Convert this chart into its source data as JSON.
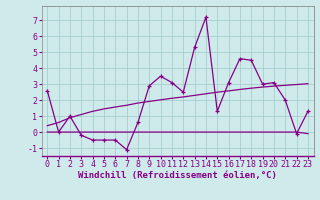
{
  "xlabel": "Windchill (Refroidissement éolien,°C)",
  "background_color": "#ceeaea",
  "grid_color": "#a0c8c8",
  "line_color": "#880088",
  "x_data": [
    0,
    1,
    2,
    3,
    4,
    5,
    6,
    7,
    8,
    9,
    10,
    11,
    12,
    13,
    14,
    15,
    16,
    17,
    18,
    19,
    20,
    21,
    22,
    23
  ],
  "y_scatter": [
    2.6,
    0.0,
    1.0,
    -0.2,
    -0.5,
    -0.5,
    -0.5,
    -1.1,
    0.6,
    2.9,
    3.5,
    3.1,
    2.5,
    5.3,
    7.2,
    1.3,
    3.1,
    4.6,
    4.5,
    3.0,
    3.1,
    2.0,
    -0.1,
    1.3
  ],
  "y_flat": [
    0.0,
    0.0,
    0.0,
    0.0,
    0.0,
    0.0,
    0.0,
    0.0,
    0.0,
    0.0,
    0.0,
    0.0,
    0.0,
    0.0,
    0.0,
    0.0,
    0.0,
    0.0,
    0.0,
    0.0,
    0.0,
    0.0,
    0.0,
    -0.1
  ],
  "y_trend": [
    0.4,
    0.6,
    0.9,
    1.1,
    1.3,
    1.45,
    1.57,
    1.68,
    1.82,
    1.92,
    2.02,
    2.12,
    2.2,
    2.3,
    2.4,
    2.5,
    2.58,
    2.67,
    2.75,
    2.82,
    2.88,
    2.93,
    2.98,
    3.03
  ],
  "ylim": [
    -1.5,
    7.9
  ],
  "xlim": [
    -0.5,
    23.5
  ],
  "yticks": [
    -1,
    0,
    1,
    2,
    3,
    4,
    5,
    6,
    7
  ],
  "xticks": [
    0,
    1,
    2,
    3,
    4,
    5,
    6,
    7,
    8,
    9,
    10,
    11,
    12,
    13,
    14,
    15,
    16,
    17,
    18,
    19,
    20,
    21,
    22,
    23
  ],
  "tick_fontsize": 6,
  "xlabel_fontsize": 6.5,
  "lw": 0.9,
  "marker_size": 3.5
}
